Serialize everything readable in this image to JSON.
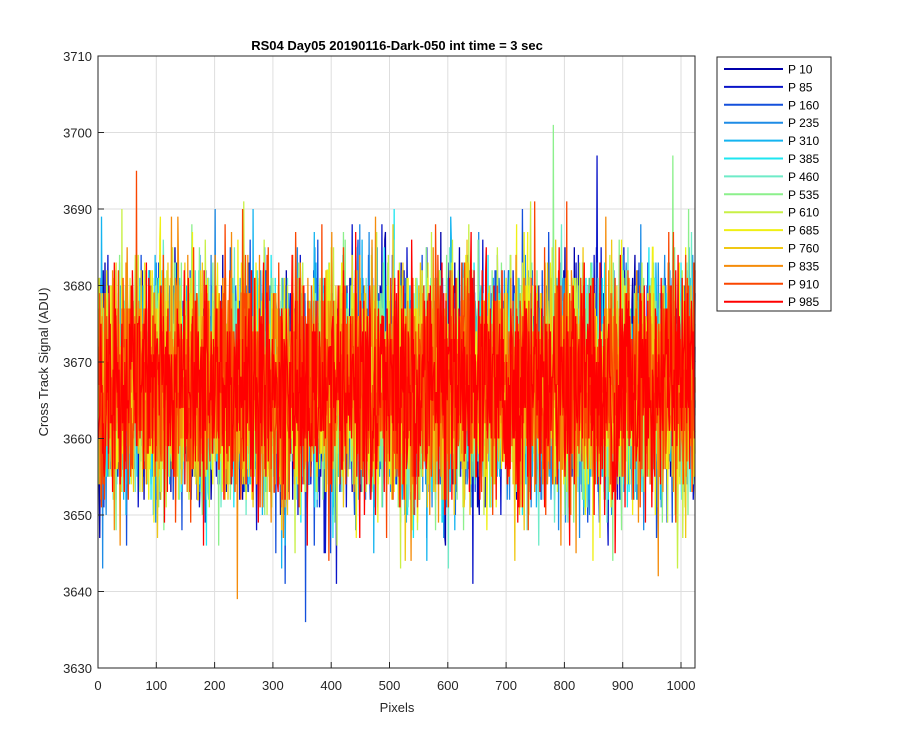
{
  "chart_data": {
    "type": "line",
    "title": "RS04 Day05 20190116-Dark-050 int time = 3 sec",
    "xlabel": "Pixels",
    "ylabel": "Cross Track Signal (ADU)",
    "xlim": [
      0,
      1024
    ],
    "ylim": [
      3630,
      3710
    ],
    "x_ticks": [
      0,
      100,
      200,
      300,
      400,
      500,
      600,
      700,
      800,
      900,
      1000
    ],
    "y_ticks": [
      3630,
      3640,
      3650,
      3660,
      3670,
      3680,
      3690,
      3700,
      3710
    ],
    "grid": true,
    "legend_position": "outside-top-right",
    "x_count": 1024,
    "noise": {
      "mean": 3667,
      "typical_min": 3650,
      "typical_max": 3685
    },
    "series": [
      {
        "name": "P 10",
        "color": "#0000aa"
      },
      {
        "name": "P 85",
        "color": "#0a14c8"
      },
      {
        "name": "P 160",
        "color": "#1450dc"
      },
      {
        "name": "P 235",
        "color": "#1e8ce6"
      },
      {
        "name": "P 310",
        "color": "#14b4f0"
      },
      {
        "name": "P 385",
        "color": "#1ee6f0"
      },
      {
        "name": "P 460",
        "color": "#6eebc8"
      },
      {
        "name": "P 535",
        "color": "#8cf08c"
      },
      {
        "name": "P 610",
        "color": "#c8f046"
      },
      {
        "name": "P 685",
        "color": "#f0f014"
      },
      {
        "name": "P 760",
        "color": "#f0c814"
      },
      {
        "name": "P 835",
        "color": "#f58c0a"
      },
      {
        "name": "P 910",
        "color": "#fa4600"
      },
      {
        "name": "P 985",
        "color": "#ff0000"
      }
    ],
    "notable_points": [
      {
        "series": "P 535",
        "x": 780,
        "y": 3701
      },
      {
        "series": "P 85",
        "x": 855,
        "y": 3697
      },
      {
        "series": "P 535",
        "x": 985,
        "y": 3697
      },
      {
        "series": "P 910",
        "x": 65,
        "y": 3695
      },
      {
        "series": "P 160",
        "x": 355,
        "y": 3636
      },
      {
        "series": "P 835",
        "x": 238,
        "y": 3639
      },
      {
        "series": "P 160",
        "x": 320,
        "y": 3641
      },
      {
        "series": "P 85",
        "x": 408,
        "y": 3641
      },
      {
        "series": "P 85",
        "x": 642,
        "y": 3641
      },
      {
        "series": "P 835",
        "x": 960,
        "y": 3642
      }
    ]
  }
}
